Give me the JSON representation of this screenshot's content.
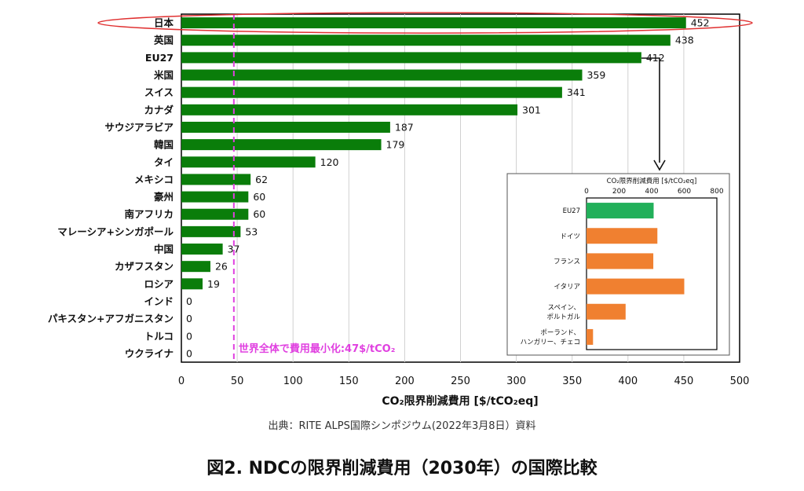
{
  "chart_data": [
    {
      "type": "bar",
      "orientation": "horizontal",
      "categories": [
        "日本",
        "英国",
        "EU27",
        "米国",
        "スイス",
        "カナダ",
        "サウジアラビア",
        "韓国",
        "タイ",
        "メキシコ",
        "豪州",
        "南アフリカ",
        "マレーシア+シンガポール",
        "中国",
        "カザフスタン",
        "ロシア",
        "インド",
        "パキスタン+アフガニスタン",
        "トルコ",
        "ウクライナ"
      ],
      "values": [
        452,
        438,
        412,
        359,
        341,
        301,
        187,
        179,
        120,
        62,
        60,
        60,
        53,
        37,
        26,
        19,
        0,
        0,
        0,
        0
      ],
      "value_labels": [
        "452",
        "438",
        "412",
        "359",
        "341",
        "301",
        "187",
        "179",
        "120",
        "62",
        "60",
        "60",
        "53",
        "37",
        "26",
        "19",
        "0",
        "0",
        "0",
        "0"
      ],
      "xlabel": "CO₂限界削減費用 [$/tCO₂eq]",
      "xlim": [
        0,
        500
      ],
      "xticks": [
        "0",
        "50",
        "100",
        "150",
        "200",
        "250",
        "300",
        "350",
        "400",
        "450",
        "500"
      ],
      "grid": true,
      "bar_color": "#0a7d0a",
      "reference_line": {
        "x": 47,
        "label": "世界全体で費用最小化:47$/tCO₂",
        "color": "#e040e0"
      },
      "highlight_category": "日本",
      "highlight_color": "#e03030"
    },
    {
      "type": "bar",
      "orientation": "horizontal",
      "title": "CO₂限界削減費用 [$/tCO₂eq]",
      "categories": [
        "EU27",
        "ドイツ",
        "フランス",
        "イタリア",
        "スペイン、ポルトガル",
        "ポーランド、ハンガリー、チェコ"
      ],
      "category_lines": [
        [
          "EU27"
        ],
        [
          "ドイツ"
        ],
        [
          "フランス"
        ],
        [
          "イタリア"
        ],
        [
          "スペイン、",
          "ポルトガル"
        ],
        [
          "ポーランド、",
          "ハンガリー、チェコ"
        ]
      ],
      "values": [
        412,
        435,
        410,
        600,
        240,
        40
      ],
      "xlim": [
        0,
        800
      ],
      "xticks": [
        "0",
        "200",
        "400",
        "600",
        "800"
      ],
      "colors": [
        "#22b05a",
        "#f08030",
        "#f08030",
        "#f08030",
        "#f08030",
        "#f08030"
      ]
    }
  ],
  "source": "出典：RITE ALPS国際シンポジウム(2022年3月8日）資料",
  "caption": "図2. NDCの限界削減費用（2030年）の国際比較"
}
